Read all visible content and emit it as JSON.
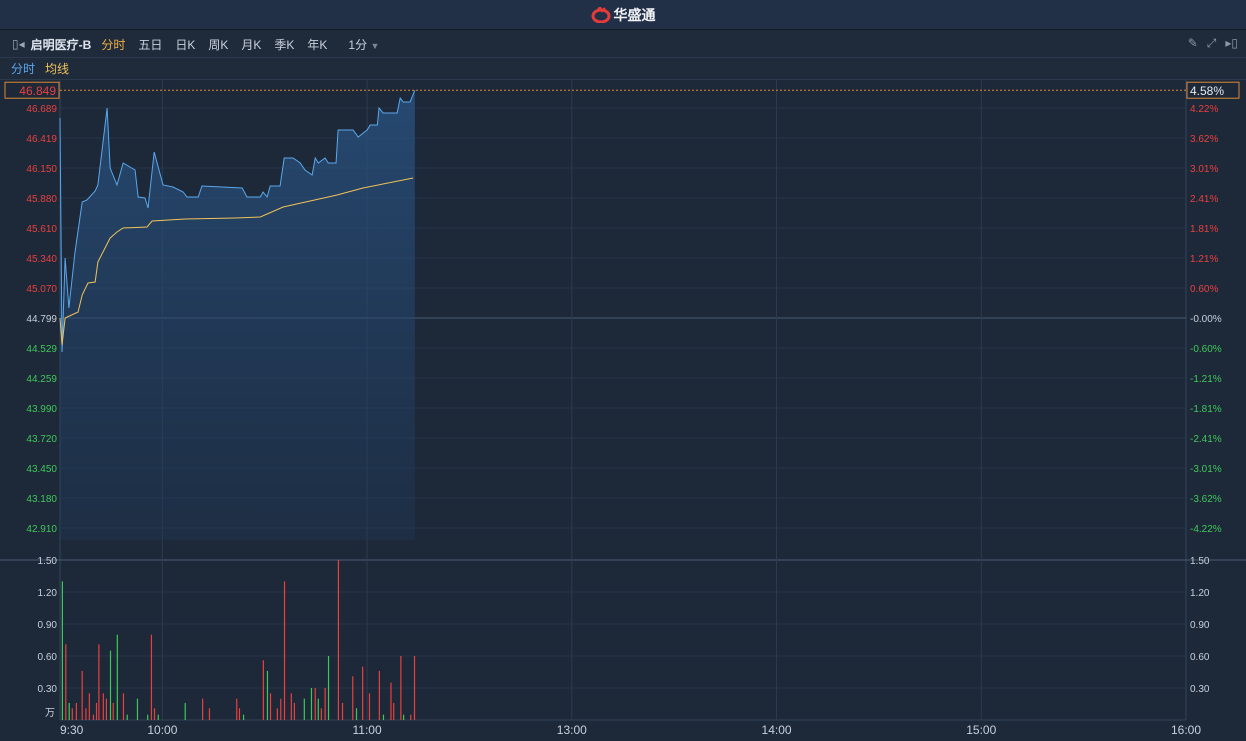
{
  "app": {
    "logo_text": "华盛通"
  },
  "toolbar": {
    "stock_name": "启明医疗-B",
    "tabs": [
      "分时",
      "五日",
      "日K",
      "周K",
      "月K",
      "季K",
      "年K"
    ],
    "active_tab": "分时",
    "interval": "1分"
  },
  "legend": {
    "price": "分时",
    "avg": "均线"
  },
  "colors": {
    "price_line": "#5aa8ee",
    "avg_line": "#f0c35a",
    "up": "#e8413f",
    "down": "#3fc85a",
    "neutral": "#c8d0dc"
  },
  "crosshair": {
    "price": "46.849",
    "pct": "4.58%"
  },
  "axes": {
    "price_labels": [
      "46.689",
      "46.419",
      "46.150",
      "45.880",
      "45.610",
      "45.340",
      "45.070",
      "44.799",
      "44.529",
      "44.259",
      "43.990",
      "43.720",
      "43.450",
      "43.180",
      "42.910"
    ],
    "pct_labels": [
      "4.22%",
      "3.62%",
      "3.01%",
      "2.41%",
      "1.81%",
      "1.21%",
      "0.60%",
      "-0.00%",
      "-0.60%",
      "-1.21%",
      "-1.81%",
      "-2.41%",
      "-3.01%",
      "-3.62%",
      "-4.22%"
    ],
    "volume_labels": [
      "1.50",
      "1.20",
      "0.90",
      "0.60",
      "0.30"
    ],
    "volume_unit": "万",
    "time_labels": [
      "9:30",
      "10:00",
      "11:00",
      "13:00",
      "14:00",
      "15:00",
      "16:00"
    ]
  },
  "chart_data": {
    "type": "line",
    "prev_close": 44.799,
    "price_step": 0.27,
    "price": [
      [
        0,
        46.599
      ],
      [
        0.3,
        45.546
      ],
      [
        0.6,
        44.493
      ],
      [
        1.5,
        45.339
      ],
      [
        2.6,
        44.889
      ],
      [
        4.4,
        45.393
      ],
      [
        6.5,
        45.843
      ],
      [
        7.9,
        45.861
      ],
      [
        10.3,
        45.942
      ],
      [
        11.1,
        45.996
      ],
      [
        13.8,
        46.689
      ],
      [
        14.7,
        46.149
      ],
      [
        16.7,
        45.996
      ],
      [
        18.5,
        46.194
      ],
      [
        22,
        46.131
      ],
      [
        22.9,
        45.888
      ],
      [
        24.9,
        45.879
      ],
      [
        25.8,
        45.789
      ],
      [
        27.6,
        46.293
      ],
      [
        30.2,
        45.996
      ],
      [
        33.1,
        45.978
      ],
      [
        36.1,
        45.933
      ],
      [
        37.2,
        45.888
      ],
      [
        40.5,
        45.888
      ],
      [
        41.6,
        45.987
      ],
      [
        53.4,
        45.969
      ],
      [
        54.8,
        45.888
      ],
      [
        58.7,
        45.888
      ],
      [
        59.5,
        45.933
      ],
      [
        60.7,
        45.888
      ],
      [
        61.6,
        45.987
      ],
      [
        64.5,
        45.987
      ],
      [
        65.7,
        46.239
      ],
      [
        68.3,
        46.239
      ],
      [
        70.4,
        46.194
      ],
      [
        71.8,
        46.131
      ],
      [
        73.9,
        46.086
      ],
      [
        74.8,
        46.239
      ],
      [
        75.7,
        46.194
      ],
      [
        77.7,
        46.239
      ],
      [
        78.6,
        46.194
      ],
      [
        80.9,
        46.194
      ],
      [
        81.5,
        46.491
      ],
      [
        85.9,
        46.491
      ],
      [
        87.4,
        46.428
      ],
      [
        90,
        46.491
      ],
      [
        90.9,
        46.536
      ],
      [
        93,
        46.536
      ],
      [
        93.5,
        46.689
      ],
      [
        94.7,
        46.644
      ],
      [
        98.8,
        46.644
      ],
      [
        99.7,
        46.779
      ],
      [
        100.6,
        46.743
      ],
      [
        102.6,
        46.743
      ],
      [
        104,
        46.849
      ]
    ],
    "avg": [
      [
        0,
        44.799
      ],
      [
        0.6,
        44.556
      ],
      [
        1.5,
        44.799
      ],
      [
        5.3,
        44.853
      ],
      [
        6.5,
        45.006
      ],
      [
        8.2,
        45.114
      ],
      [
        10.3,
        45.123
      ],
      [
        11.1,
        45.303
      ],
      [
        14.7,
        45.519
      ],
      [
        16.7,
        45.573
      ],
      [
        18.5,
        45.609
      ],
      [
        25.5,
        45.618
      ],
      [
        27,
        45.672
      ],
      [
        36.7,
        45.69
      ],
      [
        51.3,
        45.699
      ],
      [
        58.7,
        45.708
      ],
      [
        65.4,
        45.798
      ],
      [
        81.2,
        45.906
      ],
      [
        88.8,
        45.969
      ],
      [
        103.5,
        46.059
      ]
    ],
    "volume": [
      [
        0.7,
        1.3,
        "down"
      ],
      [
        1.7,
        0.71,
        "up"
      ],
      [
        2.7,
        0.16,
        "down"
      ],
      [
        3.6,
        0.11,
        "up"
      ],
      [
        4.8,
        0.16,
        "up"
      ],
      [
        6.5,
        0.46,
        "up"
      ],
      [
        7.6,
        0.11,
        "up"
      ],
      [
        8.6,
        0.25,
        "up"
      ],
      [
        9.8,
        0.05,
        "up"
      ],
      [
        10.7,
        0.16,
        "up"
      ],
      [
        11.4,
        0.71,
        "up"
      ],
      [
        12.7,
        0.25,
        "up"
      ],
      [
        13.6,
        0.2,
        "up"
      ],
      [
        14.8,
        0.65,
        "down"
      ],
      [
        15.6,
        0.16,
        "up"
      ],
      [
        16.8,
        0.8,
        "down"
      ],
      [
        18.6,
        0.25,
        "up"
      ],
      [
        19.7,
        0.05,
        "down"
      ],
      [
        22.7,
        0.2,
        "down"
      ],
      [
        25.7,
        0.05,
        "down"
      ],
      [
        26.8,
        0.8,
        "up"
      ],
      [
        27.7,
        0.11,
        "up"
      ],
      [
        28.8,
        0.05,
        "down"
      ],
      [
        36.7,
        0.16,
        "down"
      ],
      [
        41.8,
        0.2,
        "up"
      ],
      [
        43.8,
        0.11,
        "up"
      ],
      [
        51.8,
        0.2,
        "up"
      ],
      [
        52.6,
        0.11,
        "up"
      ],
      [
        53.8,
        0.05,
        "down"
      ],
      [
        59.6,
        0.56,
        "up"
      ],
      [
        60.8,
        0.46,
        "down"
      ],
      [
        61.7,
        0.25,
        "up"
      ],
      [
        63.7,
        0.11,
        "up"
      ],
      [
        64.7,
        0.2,
        "up"
      ],
      [
        65.8,
        1.3,
        "up"
      ],
      [
        67.8,
        0.25,
        "up"
      ],
      [
        68.7,
        0.16,
        "up"
      ],
      [
        71.6,
        0.2,
        "down"
      ],
      [
        73.7,
        0.3,
        "down"
      ],
      [
        74.8,
        0.3,
        "up"
      ],
      [
        75.7,
        0.2,
        "down"
      ],
      [
        76.6,
        0.11,
        "up"
      ],
      [
        77.7,
        0.3,
        "up"
      ],
      [
        78.7,
        0.6,
        "down"
      ],
      [
        81.6,
        1.5,
        "up"
      ],
      [
        82.8,
        0.16,
        "up"
      ],
      [
        85.8,
        0.41,
        "up"
      ],
      [
        86.9,
        0.11,
        "down"
      ],
      [
        88.7,
        0.5,
        "up"
      ],
      [
        90.7,
        0.25,
        "up"
      ],
      [
        93.6,
        0.46,
        "up"
      ],
      [
        94.8,
        0.05,
        "down"
      ],
      [
        97.0,
        0.35,
        "up"
      ],
      [
        97.8,
        0.16,
        "up"
      ],
      [
        99.9,
        0.6,
        "up"
      ],
      [
        100.7,
        0.05,
        "down"
      ],
      [
        102.8,
        0.05,
        "up"
      ],
      [
        103.9,
        0.6,
        "up"
      ]
    ],
    "x_unit": "minutes from 9:30 (trading minutes)",
    "xlim": [
      0,
      330
    ],
    "volume_ylim": [
      0,
      1.5
    ]
  }
}
